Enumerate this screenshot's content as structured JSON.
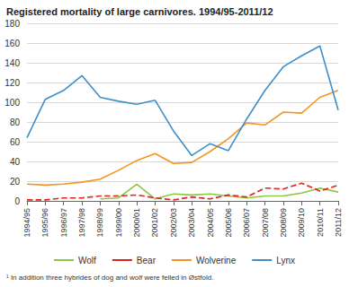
{
  "chart_data": {
    "type": "line",
    "title": "Registered mortality of large carnivores. 1994/95-2011/12",
    "footnote": "¹ In addition three hybrides of dog and wolf were felled in Østfold.",
    "categories": [
      "1994/95",
      "1995/96",
      "1996/97",
      "1997/98",
      "1998/99",
      "1999/00",
      "2000/01",
      "2001/02",
      "2002/03",
      "2003/04",
      "2004/05",
      "2005/06",
      "2006/07",
      "2007/08",
      "2008/09",
      "2009/10",
      "2010/11",
      "2011/12"
    ],
    "series": [
      {
        "name": "Wolf",
        "color": "#8dc63f",
        "line_style": "solid",
        "values": [
          null,
          null,
          null,
          null,
          2,
          3,
          17,
          2,
          7,
          6,
          7,
          5,
          3,
          5,
          5,
          8,
          13,
          9
        ]
      },
      {
        "name": "Bear",
        "color": "#e0211b",
        "line_style": "dashed",
        "values": [
          1,
          1,
          3,
          3,
          5,
          5,
          6,
          3,
          1,
          4,
          2,
          6,
          4,
          13,
          12,
          18,
          10,
          16
        ]
      },
      {
        "name": "Wolverine",
        "color": "#f7941d",
        "line_style": "solid",
        "values": [
          17,
          16,
          17,
          19,
          22,
          31,
          41,
          48,
          38,
          39,
          50,
          63,
          79,
          77,
          90,
          89,
          105,
          112
        ]
      },
      {
        "name": "Lynx",
        "color": "#3e8fc9",
        "line_style": "solid",
        "values": [
          64,
          103,
          112,
          127,
          105,
          101,
          98,
          102,
          71,
          46,
          58,
          51,
          83,
          112,
          136,
          147,
          157,
          92
        ]
      }
    ],
    "ylim": [
      0,
      180
    ],
    "yticks": [
      0,
      20,
      40,
      60,
      80,
      100,
      120,
      140,
      160,
      180
    ],
    "grid": true,
    "legend": "bottom"
  }
}
